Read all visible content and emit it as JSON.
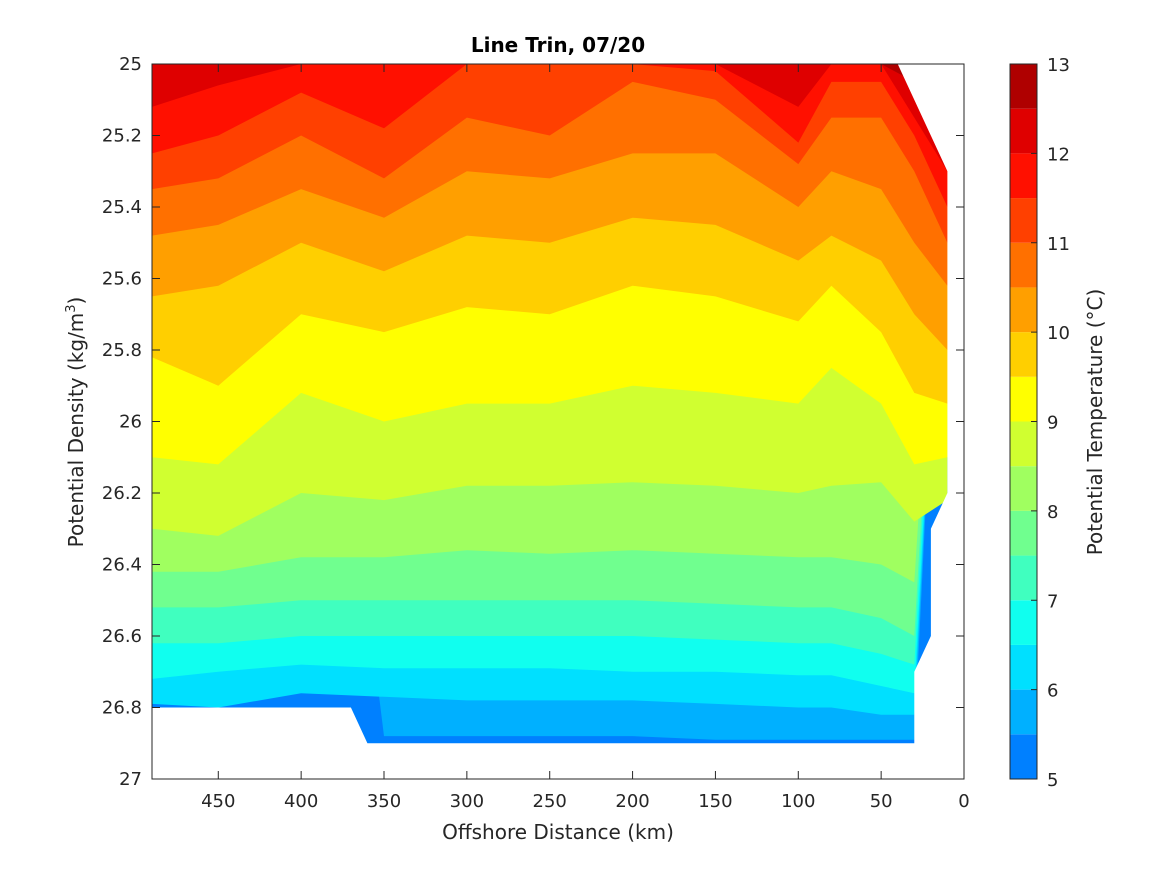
{
  "chart_data": {
    "type": "contour",
    "title": "Line Trin, 07/20",
    "xlabel": "Offshore Distance (km)",
    "ylabel": "Potential Density (kg/m",
    "ylabel_sup": "3",
    "ylabel_end": ")",
    "colorbar_label": "Potential Temperature (°C)",
    "xlim": [
      490,
      0
    ],
    "x_reversed": true,
    "x_ticks": [
      "450",
      "400",
      "350",
      "300",
      "250",
      "200",
      "150",
      "100",
      "50",
      "0"
    ],
    "ylim": [
      25,
      27
    ],
    "y_reversed": true,
    "y_ticks": [
      "25",
      "25.2",
      "25.4",
      "25.6",
      "25.8",
      "26",
      "26.2",
      "26.4",
      "26.6",
      "26.8",
      "27"
    ],
    "colorbar_ticks": [
      "13",
      "12",
      "11",
      "10",
      "9",
      "8",
      "7",
      "6",
      "5"
    ],
    "colorbar_range": [
      5,
      13
    ],
    "levels": [
      5,
      5.5,
      6,
      6.5,
      7,
      7.5,
      8,
      8.5,
      9,
      9.5,
      10,
      10.5,
      11,
      11.5,
      12,
      12.5,
      13
    ],
    "level_colors": [
      "#00008f",
      "#0000bf",
      "#0000ef",
      "#0020ff",
      "#0050ff",
      "#0080ff",
      "#00b0ff",
      "#00e0ff",
      "#10ffef",
      "#40ffbf",
      "#70ff8f",
      "#a0ff60",
      "#d0ff30",
      "#ffff00",
      "#ffcf00",
      "#ff9f00",
      "#ff7000",
      "#ff4000",
      "#ff1000",
      "#df0000",
      "#af0000",
      "#800000"
    ],
    "colormap": "jet",
    "sample_x": [
      490,
      450,
      400,
      350,
      300,
      250,
      200,
      150,
      100,
      80,
      50,
      30,
      10
    ],
    "isopycnal_by_temperature": [
      {
        "t": 12.5,
        "sigma": [
          25.0,
          25.0,
          null,
          null,
          null,
          null,
          null,
          null,
          null,
          null,
          null,
          25.05,
          25.18
        ]
      },
      {
        "t": 12,
        "sigma": [
          25.12,
          25.06,
          null,
          null,
          null,
          null,
          null,
          null,
          25.12,
          null,
          null,
          25.15,
          25.3
        ]
      },
      {
        "t": 11.5,
        "sigma": [
          25.25,
          25.2,
          25.08,
          25.18,
          null,
          null,
          null,
          25.02,
          25.22,
          25.05,
          25.05,
          25.2,
          25.4
        ]
      },
      {
        "t": 11,
        "sigma": [
          25.35,
          25.32,
          25.2,
          25.32,
          25.15,
          25.2,
          25.05,
          25.1,
          25.28,
          25.15,
          25.15,
          25.3,
          25.5
        ]
      },
      {
        "t": 10.5,
        "sigma": [
          25.48,
          25.45,
          25.35,
          25.43,
          25.3,
          25.32,
          25.25,
          25.25,
          25.4,
          25.3,
          25.35,
          25.5,
          25.62
        ]
      },
      {
        "t": 10,
        "sigma": [
          25.65,
          25.62,
          25.5,
          25.58,
          25.48,
          25.5,
          25.43,
          25.45,
          25.55,
          25.48,
          25.55,
          25.7,
          25.8
        ]
      },
      {
        "t": 9.5,
        "sigma": [
          25.82,
          25.9,
          25.7,
          25.75,
          25.68,
          25.7,
          25.62,
          25.65,
          25.72,
          25.62,
          25.75,
          25.92,
          25.95
        ]
      },
      {
        "t": 9,
        "sigma": [
          26.1,
          26.12,
          25.92,
          26.0,
          25.95,
          25.95,
          25.9,
          25.92,
          25.95,
          25.85,
          25.95,
          26.12,
          26.1
        ]
      },
      {
        "t": 8.5,
        "sigma": [
          26.3,
          26.32,
          26.2,
          26.22,
          26.18,
          26.18,
          26.17,
          26.18,
          26.2,
          26.18,
          26.17,
          26.28,
          26.22
        ]
      },
      {
        "t": 8,
        "sigma": [
          26.42,
          26.42,
          26.38,
          26.38,
          26.36,
          26.37,
          26.36,
          26.37,
          26.38,
          26.38,
          26.4,
          26.45,
          null
        ]
      },
      {
        "t": 7.5,
        "sigma": [
          26.52,
          26.52,
          26.5,
          26.5,
          26.5,
          26.5,
          26.5,
          26.51,
          26.52,
          26.52,
          26.55,
          26.6,
          null
        ]
      },
      {
        "t": 7,
        "sigma": [
          26.62,
          26.62,
          26.6,
          26.6,
          26.6,
          26.6,
          26.6,
          26.61,
          26.62,
          26.62,
          26.65,
          26.68,
          null
        ]
      },
      {
        "t": 6.5,
        "sigma": [
          26.72,
          26.7,
          26.68,
          26.69,
          26.69,
          26.69,
          26.7,
          26.7,
          26.71,
          26.71,
          26.74,
          26.76,
          null
        ]
      },
      {
        "t": 6,
        "sigma": [
          26.79,
          26.8,
          26.76,
          26.77,
          26.78,
          26.78,
          26.78,
          26.79,
          26.8,
          26.8,
          26.82,
          26.82,
          null
        ]
      },
      {
        "t": 5.5,
        "sigma": [
          null,
          null,
          null,
          26.88,
          26.88,
          26.88,
          26.88,
          26.89,
          26.89,
          26.89,
          26.89,
          26.89,
          null
        ]
      }
    ],
    "data_extent_note": ""
  }
}
